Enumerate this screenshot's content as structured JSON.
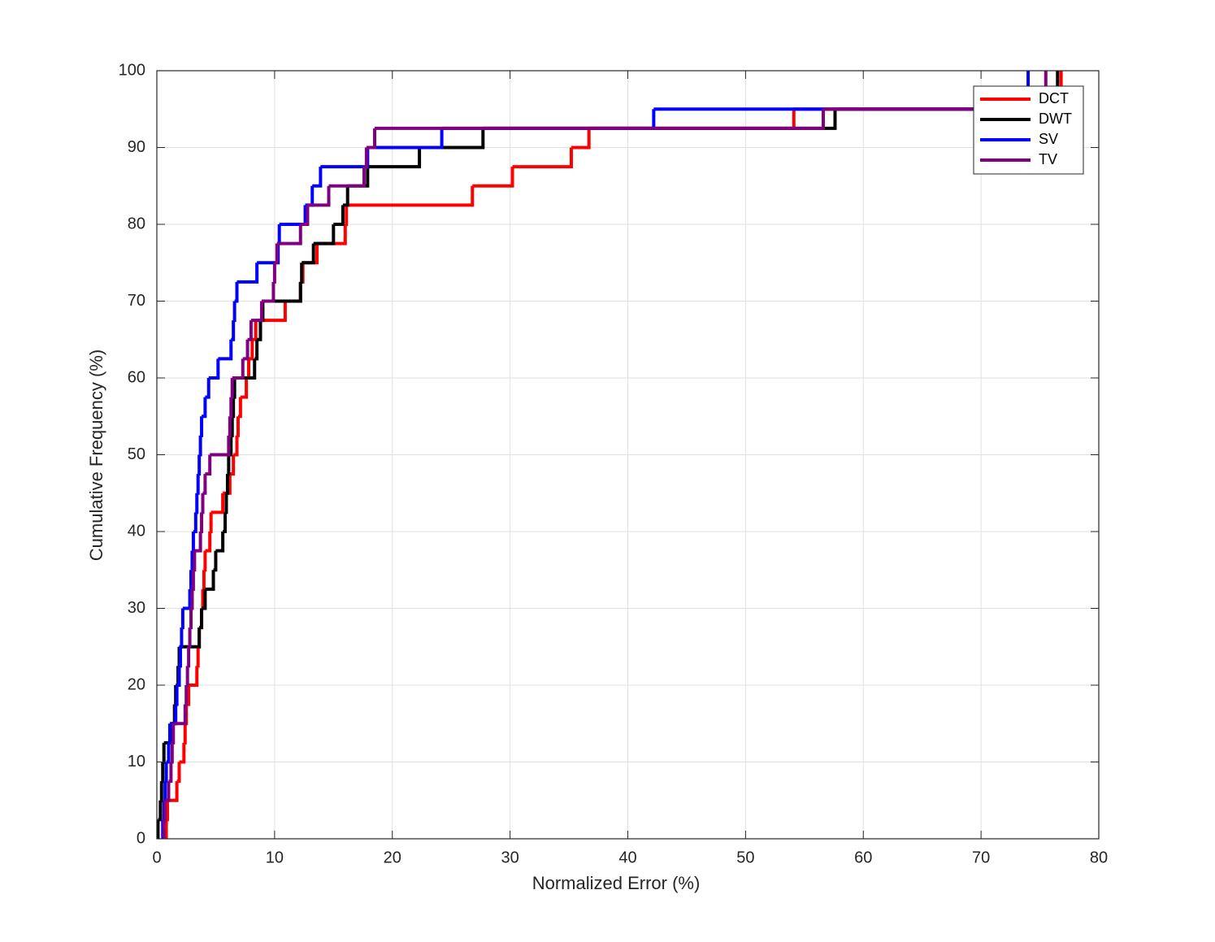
{
  "chart_data": {
    "type": "ecdf",
    "xlabel": "Normalized Error (%)",
    "ylabel": "Cumulative Frequency (%)",
    "xlim": [
      0,
      80
    ],
    "ylim": [
      0,
      100
    ],
    "xticks": [
      0,
      10,
      20,
      30,
      40,
      50,
      60,
      70,
      80
    ],
    "yticks": [
      0,
      10,
      20,
      30,
      40,
      50,
      60,
      70,
      80,
      90,
      100
    ],
    "grid": true,
    "legend": "upper right",
    "series": [
      {
        "name": "DCT",
        "color": "#ff0000",
        "x": [
          0.8,
          0.9,
          1.7,
          1.9,
          2.3,
          2.4,
          2.5,
          2.7,
          3.4,
          3.5,
          3.6,
          3.8,
          3.9,
          4.0,
          4.1,
          4.5,
          4.6,
          5.6,
          6.2,
          6.5,
          6.8,
          6.9,
          7.1,
          7.6,
          7.8,
          8.1,
          8.4,
          10.9,
          12.2,
          12.4,
          13.6,
          16.0,
          16.1,
          26.8,
          30.2,
          35.2,
          36.7,
          54.1,
          76.7,
          76.8
        ],
        "values": [
          2.5,
          5,
          7.5,
          10,
          12.5,
          15,
          17.5,
          20,
          22.5,
          25,
          27.5,
          30,
          32.5,
          35,
          37.5,
          40,
          42.5,
          45,
          47.5,
          50,
          52.5,
          55,
          57.5,
          60,
          62.5,
          65,
          67.5,
          70,
          72.5,
          75,
          77.5,
          80,
          82.5,
          85,
          87.5,
          90,
          92.5,
          95,
          97.5,
          100
        ]
      },
      {
        "name": "DWT",
        "color": "#000000",
        "x": [
          0.1,
          0.3,
          0.4,
          0.5,
          0.6,
          1.2,
          1.5,
          1.6,
          1.8,
          1.9,
          3.6,
          3.8,
          4.1,
          4.8,
          5.0,
          5.6,
          5.8,
          5.9,
          6.0,
          6.1,
          6.3,
          6.4,
          6.5,
          6.6,
          8.3,
          8.5,
          8.8,
          9.0,
          12.2,
          12.3,
          13.3,
          15.0,
          15.8,
          16.2,
          17.9,
          22.3,
          27.7,
          57.6,
          76.4,
          76.5
        ],
        "values": [
          2.5,
          5,
          7.5,
          10,
          12.5,
          15,
          17.5,
          20,
          22.5,
          25,
          27.5,
          30,
          32.5,
          35,
          37.5,
          40,
          42.5,
          45,
          47.5,
          50,
          52.5,
          55,
          57.5,
          60,
          62.5,
          65,
          67.5,
          70,
          72.5,
          75,
          77.5,
          80,
          82.5,
          85,
          87.5,
          90,
          92.5,
          95,
          97.5,
          100
        ]
      },
      {
        "name": "SV",
        "color": "#0000ff",
        "x": [
          0.5,
          0.6,
          0.7,
          0.8,
          1.0,
          1.1,
          1.6,
          1.7,
          1.9,
          2.0,
          2.1,
          2.2,
          2.8,
          2.9,
          3.0,
          3.1,
          3.3,
          3.4,
          3.5,
          3.6,
          3.7,
          3.8,
          4.1,
          4.4,
          5.2,
          6.3,
          6.5,
          6.6,
          6.8,
          8.5,
          10.3,
          10.4,
          12.6,
          13.2,
          13.9,
          17.9,
          24.2,
          42.2,
          73.9,
          74.0
        ],
        "values": [
          2.5,
          5,
          7.5,
          10,
          12.5,
          15,
          17.5,
          20,
          22.5,
          25,
          27.5,
          30,
          32.5,
          35,
          37.5,
          40,
          42.5,
          45,
          47.5,
          50,
          52.5,
          55,
          57.5,
          60,
          62.5,
          65,
          67.5,
          70,
          72.5,
          75,
          77.5,
          80,
          82.5,
          85,
          87.5,
          90,
          92.5,
          95,
          97.5,
          100
        ]
      },
      {
        "name": "TV",
        "color": "#800080",
        "x": [
          0.6,
          0.7,
          1.0,
          1.2,
          1.3,
          1.4,
          2.4,
          2.5,
          2.6,
          2.7,
          2.8,
          2.9,
          3.0,
          3.1,
          3.2,
          3.7,
          3.8,
          3.9,
          4.1,
          4.5,
          6.1,
          6.2,
          6.3,
          6.4,
          7.3,
          7.7,
          8.0,
          8.9,
          9.9,
          10.0,
          10.2,
          12.2,
          12.8,
          14.6,
          17.6,
          17.8,
          18.5,
          56.6,
          75.4,
          75.5
        ],
        "values": [
          2.5,
          5,
          7.5,
          10,
          12.5,
          15,
          17.5,
          20,
          22.5,
          25,
          27.5,
          30,
          32.5,
          35,
          37.5,
          40,
          42.5,
          45,
          47.5,
          50,
          52.5,
          55,
          57.5,
          60,
          62.5,
          65,
          67.5,
          70,
          72.5,
          75,
          77.5,
          80,
          82.5,
          85,
          87.5,
          90,
          92.5,
          95,
          97.5,
          100
        ]
      }
    ]
  }
}
